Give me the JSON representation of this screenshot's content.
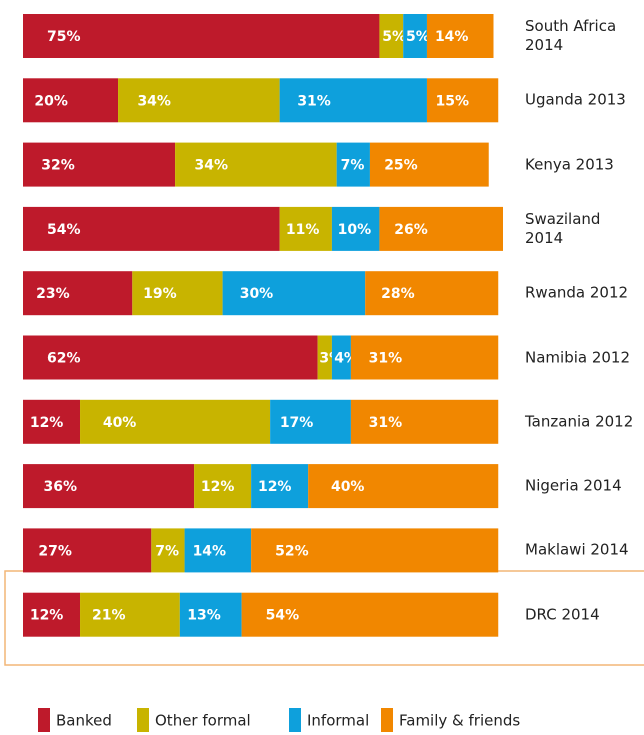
{
  "chart_data": {
    "type": "stacked-bar",
    "categories": [
      "South Africa\n2014",
      "Uganda 2013",
      "Kenya 2013",
      "Swaziland\n2014",
      "Rwanda 2012",
      "Namibia 2012",
      "Tanzania 2012",
      "Nigeria 2014",
      "Maklawi 2014",
      "DRC 2014"
    ],
    "series": [
      {
        "name": "Banked",
        "color": "#be1a2b",
        "values": [
          75,
          20,
          32,
          54,
          23,
          62,
          12,
          36,
          27,
          12
        ],
        "value_labels": [
          "75%",
          "20%",
          "32%",
          "54%",
          "23%",
          "62%",
          "12%",
          "36%",
          "27%",
          "12%"
        ]
      },
      {
        "name": "Other formal",
        "color": "#c8b400",
        "values": [
          5,
          34,
          34,
          11,
          19,
          3,
          40,
          12,
          7,
          21
        ],
        "value_labels": [
          "5%",
          "34%",
          "34%",
          "11%",
          "19%",
          "3%",
          "40%",
          "12%",
          "7%",
          "21%"
        ]
      },
      {
        "name": "Informal",
        "color": "#0ea0dc",
        "values": [
          5,
          31,
          7,
          10,
          30,
          4,
          17,
          12,
          14,
          13
        ],
        "value_labels": [
          "5%",
          "31%",
          "7%",
          "10%",
          "30%",
          "4%",
          "17%",
          "12%",
          "14%",
          "13%"
        ]
      },
      {
        "name": "Family & friends",
        "color": "#f18700",
        "values": [
          14,
          15,
          25,
          26,
          28,
          31,
          31,
          40,
          52,
          54
        ],
        "value_labels": [
          "14%",
          "15%",
          "25%",
          "26%",
          "28%",
          "31%",
          "31%",
          "40%",
          "52%",
          "54%"
        ]
      }
    ],
    "xlim": [
      0,
      101
    ]
  }
}
